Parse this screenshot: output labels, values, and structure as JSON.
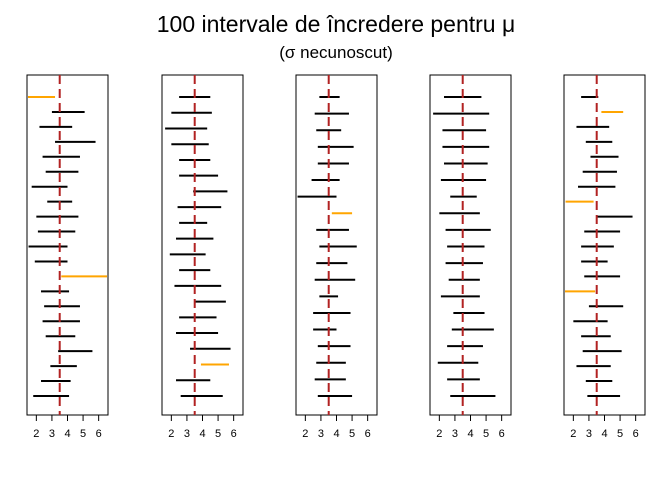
{
  "chart_data": {
    "type": "interval",
    "title": "100 intervale de încredere pentru μ",
    "subtitle": "(σ necunoscut)",
    "true_mean": 3.5,
    "xlim": [
      1.4,
      6.6
    ],
    "x_ticks": [
      2,
      3,
      4,
      5,
      6
    ],
    "colors": {
      "covers": "#000000",
      "misses": "#FFA500",
      "mean_line": "#B22222"
    },
    "panels": [
      {
        "intervals": [
          [
            1.4,
            3.2
          ],
          [
            3.0,
            5.1
          ],
          [
            2.2,
            4.3
          ],
          [
            3.2,
            5.8
          ],
          [
            2.4,
            4.8
          ],
          [
            2.6,
            4.7
          ],
          [
            1.7,
            4.0
          ],
          [
            2.7,
            4.3
          ],
          [
            2.0,
            4.7
          ],
          [
            2.1,
            4.5
          ],
          [
            1.5,
            4.0
          ],
          [
            1.9,
            4.0
          ],
          [
            3.6,
            7.0
          ],
          [
            2.3,
            4.1
          ],
          [
            2.5,
            4.8
          ],
          [
            2.4,
            4.8
          ],
          [
            2.6,
            4.5
          ],
          [
            3.4,
            5.6
          ],
          [
            2.9,
            4.6
          ],
          [
            2.3,
            4.2
          ],
          [
            1.8,
            4.1
          ]
        ]
      },
      {
        "intervals": [
          [
            2.5,
            4.5
          ],
          [
            2.0,
            4.6
          ],
          [
            1.6,
            4.3
          ],
          [
            2.0,
            4.4
          ],
          [
            2.5,
            4.5
          ],
          [
            2.5,
            5.0
          ],
          [
            3.4,
            5.6
          ],
          [
            2.4,
            5.2
          ],
          [
            2.5,
            4.3
          ],
          [
            2.3,
            4.7
          ],
          [
            1.9,
            4.2
          ],
          [
            2.5,
            4.5
          ],
          [
            2.2,
            5.2
          ],
          [
            3.5,
            5.5
          ],
          [
            2.5,
            4.9
          ],
          [
            2.3,
            5.0
          ],
          [
            3.2,
            5.8
          ],
          [
            3.9,
            5.7
          ],
          [
            2.3,
            4.5
          ],
          [
            2.6,
            5.3
          ]
        ]
      },
      {
        "intervals": [
          [
            2.9,
            4.2
          ],
          [
            2.6,
            4.8
          ],
          [
            2.7,
            4.3
          ],
          [
            2.8,
            5.1
          ],
          [
            2.8,
            4.8
          ],
          [
            2.4,
            4.2
          ],
          [
            1.5,
            4.0
          ],
          [
            3.7,
            5.0
          ],
          [
            2.7,
            4.8
          ],
          [
            2.9,
            5.3
          ],
          [
            2.7,
            4.7
          ],
          [
            2.6,
            5.2
          ],
          [
            2.9,
            4.1
          ],
          [
            2.5,
            4.9
          ],
          [
            2.5,
            4.0
          ],
          [
            2.8,
            4.9
          ],
          [
            2.7,
            4.6
          ],
          [
            2.6,
            4.6
          ],
          [
            2.8,
            5.0
          ]
        ]
      },
      {
        "intervals": [
          [
            2.3,
            4.7
          ],
          [
            1.6,
            5.2
          ],
          [
            2.2,
            5.0
          ],
          [
            2.2,
            5.2
          ],
          [
            2.3,
            5.1
          ],
          [
            2.1,
            5.0
          ],
          [
            2.7,
            4.4
          ],
          [
            2.0,
            4.6
          ],
          [
            2.4,
            5.3
          ],
          [
            2.5,
            4.9
          ],
          [
            2.4,
            4.8
          ],
          [
            2.6,
            4.6
          ],
          [
            2.1,
            4.6
          ],
          [
            2.9,
            4.9
          ],
          [
            2.8,
            5.5
          ],
          [
            2.5,
            4.8
          ],
          [
            1.9,
            4.5
          ],
          [
            2.5,
            4.6
          ],
          [
            2.7,
            5.6
          ]
        ]
      },
      {
        "intervals": [
          [
            2.5,
            3.6
          ],
          [
            3.8,
            5.2
          ],
          [
            2.2,
            4.3
          ],
          [
            2.8,
            4.5
          ],
          [
            3.1,
            4.9
          ],
          [
            2.6,
            4.8
          ],
          [
            2.3,
            4.7
          ],
          [
            1.5,
            3.3
          ],
          [
            3.5,
            5.8
          ],
          [
            2.7,
            5.0
          ],
          [
            2.5,
            4.6
          ],
          [
            2.5,
            4.2
          ],
          [
            2.7,
            5.0
          ],
          [
            1.1,
            3.4
          ],
          [
            3.0,
            5.2
          ],
          [
            2.0,
            4.2
          ],
          [
            2.5,
            4.4
          ],
          [
            2.6,
            5.1
          ],
          [
            2.2,
            4.4
          ],
          [
            2.8,
            4.5
          ],
          [
            2.9,
            5.0
          ]
        ]
      }
    ]
  }
}
